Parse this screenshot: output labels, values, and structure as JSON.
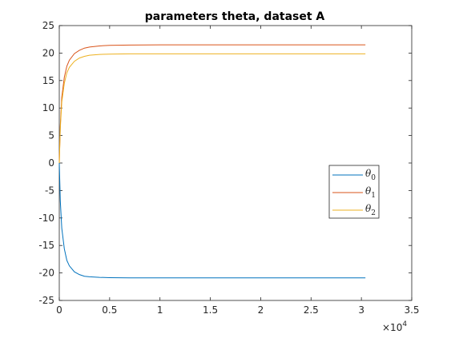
{
  "chart_data": {
    "type": "line",
    "title": "parameters theta, dataset A",
    "xlabel": "",
    "ylabel": "",
    "xlim": [
      0,
      35000
    ],
    "ylim": [
      -25,
      25
    ],
    "x_ticks": [
      0,
      5000,
      10000,
      15000,
      20000,
      25000,
      30000,
      35000
    ],
    "x_tick_labels": [
      "0",
      "0.5",
      "1",
      "1.5",
      "2",
      "2.5",
      "3",
      "3.5"
    ],
    "x_exponent_label": "×10",
    "x_exponent_power": "4",
    "y_ticks": [
      -25,
      -20,
      -15,
      -10,
      -5,
      0,
      5,
      10,
      15,
      20,
      25
    ],
    "y_tick_labels": [
      "-25",
      "-20",
      "-15",
      "-10",
      "-5",
      "0",
      "5",
      "10",
      "15",
      "20",
      "25"
    ],
    "grid": false,
    "legend_position": "right",
    "series": [
      {
        "name": "θ",
        "subscript": "0",
        "color": "#0072BD",
        "x": [
          0,
          100,
          250,
          500,
          750,
          1000,
          1500,
          2000,
          2500,
          3000,
          4000,
          5000,
          7000,
          10000,
          15000,
          20000,
          25000,
          30400
        ],
        "y": [
          0,
          -6.8,
          -11.9,
          -15.6,
          -17.7,
          -18.7,
          -19.8,
          -20.3,
          -20.6,
          -20.7,
          -20.8,
          -20.85,
          -20.9,
          -20.9,
          -20.9,
          -20.9,
          -20.9,
          -20.9
        ]
      },
      {
        "name": "θ",
        "subscript": "1",
        "color": "#D95319",
        "x": [
          0,
          100,
          250,
          500,
          750,
          1000,
          1500,
          2000,
          2500,
          3000,
          4000,
          5000,
          7000,
          10000,
          15000,
          20000,
          25000,
          30400
        ],
        "y": [
          0,
          6.7,
          12.0,
          15.6,
          17.6,
          18.7,
          19.9,
          20.5,
          20.9,
          21.1,
          21.3,
          21.4,
          21.45,
          21.5,
          21.5,
          21.5,
          21.5,
          21.5
        ]
      },
      {
        "name": "θ",
        "subscript": "2",
        "color": "#EDB120",
        "x": [
          0,
          100,
          250,
          500,
          750,
          1000,
          1500,
          2000,
          2500,
          3000,
          4000,
          5000,
          7000,
          10000,
          15000,
          20000,
          25000,
          30400
        ],
        "y": [
          0,
          6.2,
          11.1,
          14.5,
          16.4,
          17.4,
          18.5,
          19.1,
          19.4,
          19.6,
          19.75,
          19.8,
          19.85,
          19.85,
          19.85,
          19.85,
          19.85,
          19.85
        ]
      }
    ]
  }
}
